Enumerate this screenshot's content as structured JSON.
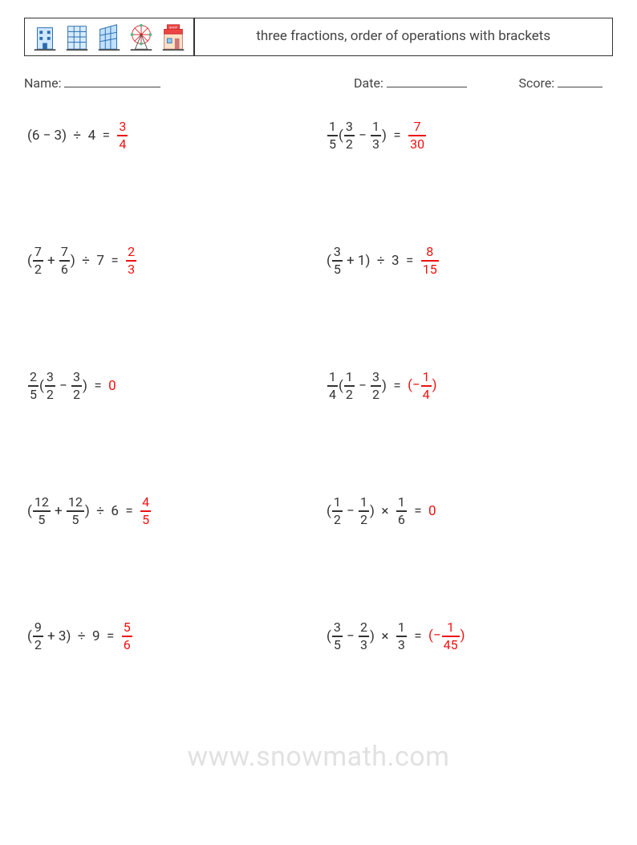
{
  "header": {
    "title": "three fractions, order of operations with brackets",
    "icons": [
      "building-1",
      "building-2",
      "building-3",
      "ferris-wheel",
      "shop"
    ]
  },
  "meta": {
    "name_label": "Name: ",
    "date_label": "Date: ",
    "score_label": "Score: "
  },
  "answer_color": "#ee1111",
  "text_color": "#333333",
  "watermark": "www.snowmath.com",
  "problems": [
    {
      "expr": [
        {
          "t": "txt",
          "v": "(6 − 3)  ÷  4  =  "
        }
      ],
      "ans": [
        {
          "t": "frac",
          "n": "3",
          "d": "4"
        }
      ]
    },
    {
      "expr": [
        {
          "t": "frac",
          "n": "1",
          "d": "5"
        },
        {
          "t": "txt",
          "v": "("
        },
        {
          "t": "frac",
          "n": "3",
          "d": "2"
        },
        {
          "t": "txt",
          "v": " − "
        },
        {
          "t": "frac",
          "n": "1",
          "d": "3"
        },
        {
          "t": "txt",
          "v": ")  =  "
        }
      ],
      "ans": [
        {
          "t": "frac",
          "n": "7",
          "d": "30"
        }
      ]
    },
    {
      "expr": [
        {
          "t": "txt",
          "v": "("
        },
        {
          "t": "frac",
          "n": "7",
          "d": "2"
        },
        {
          "t": "txt",
          "v": " + "
        },
        {
          "t": "frac",
          "n": "7",
          "d": "6"
        },
        {
          "t": "txt",
          "v": ")  ÷  7  =  "
        }
      ],
      "ans": [
        {
          "t": "frac",
          "n": "2",
          "d": "3"
        }
      ]
    },
    {
      "expr": [
        {
          "t": "txt",
          "v": "("
        },
        {
          "t": "frac",
          "n": "3",
          "d": "5"
        },
        {
          "t": "txt",
          "v": " + 1)  ÷  3  =  "
        }
      ],
      "ans": [
        {
          "t": "frac",
          "n": "8",
          "d": "15"
        }
      ]
    },
    {
      "expr": [
        {
          "t": "frac",
          "n": "2",
          "d": "5"
        },
        {
          "t": "txt",
          "v": "("
        },
        {
          "t": "frac",
          "n": "3",
          "d": "2"
        },
        {
          "t": "txt",
          "v": " − "
        },
        {
          "t": "frac",
          "n": "3",
          "d": "2"
        },
        {
          "t": "txt",
          "v": ")  =  "
        }
      ],
      "ans": [
        {
          "t": "txt",
          "v": "0"
        }
      ]
    },
    {
      "expr": [
        {
          "t": "frac",
          "n": "1",
          "d": "4"
        },
        {
          "t": "txt",
          "v": "("
        },
        {
          "t": "frac",
          "n": "1",
          "d": "2"
        },
        {
          "t": "txt",
          "v": " − "
        },
        {
          "t": "frac",
          "n": "3",
          "d": "2"
        },
        {
          "t": "txt",
          "v": ")  =  "
        }
      ],
      "ans": [
        {
          "t": "txt",
          "v": "(−"
        },
        {
          "t": "frac",
          "n": "1",
          "d": "4"
        },
        {
          "t": "txt",
          "v": ")"
        }
      ]
    },
    {
      "expr": [
        {
          "t": "txt",
          "v": "("
        },
        {
          "t": "frac",
          "n": "12",
          "d": "5"
        },
        {
          "t": "txt",
          "v": " + "
        },
        {
          "t": "frac",
          "n": "12",
          "d": "5"
        },
        {
          "t": "txt",
          "v": ")  ÷  6  =  "
        }
      ],
      "ans": [
        {
          "t": "frac",
          "n": "4",
          "d": "5"
        }
      ]
    },
    {
      "expr": [
        {
          "t": "txt",
          "v": "("
        },
        {
          "t": "frac",
          "n": "1",
          "d": "2"
        },
        {
          "t": "txt",
          "v": " − "
        },
        {
          "t": "frac",
          "n": "1",
          "d": "2"
        },
        {
          "t": "txt",
          "v": ")  ×  "
        },
        {
          "t": "frac",
          "n": "1",
          "d": "6"
        },
        {
          "t": "txt",
          "v": "  =  "
        }
      ],
      "ans": [
        {
          "t": "txt",
          "v": "0"
        }
      ]
    },
    {
      "expr": [
        {
          "t": "txt",
          "v": "("
        },
        {
          "t": "frac",
          "n": "9",
          "d": "2"
        },
        {
          "t": "txt",
          "v": " + 3)  ÷  9  =  "
        }
      ],
      "ans": [
        {
          "t": "frac",
          "n": "5",
          "d": "6"
        }
      ]
    },
    {
      "expr": [
        {
          "t": "txt",
          "v": "("
        },
        {
          "t": "frac",
          "n": "3",
          "d": "5"
        },
        {
          "t": "txt",
          "v": " − "
        },
        {
          "t": "frac",
          "n": "2",
          "d": "3"
        },
        {
          "t": "txt",
          "v": ")  ×  "
        },
        {
          "t": "frac",
          "n": "1",
          "d": "3"
        },
        {
          "t": "txt",
          "v": "  =  "
        }
      ],
      "ans": [
        {
          "t": "txt",
          "v": "(−"
        },
        {
          "t": "frac",
          "n": "1",
          "d": "45"
        },
        {
          "t": "txt",
          "v": ")"
        }
      ]
    }
  ],
  "icon_svgs": {
    "building-1": "<svg viewBox='0 0 40 40'><rect x='10' y='8' width='20' height='28' fill='#cfe8ff' stroke='#2b6caf'/><rect x='13' y='12' width='4' height='4' fill='#2b6caf'/><rect x='23' y='12' width='4' height='4' fill='#2b6caf'/><rect x='13' y='20' width='4' height='4' fill='#2b6caf'/><rect x='23' y='20' width='4' height='4' fill='#2b6caf'/><rect x='17' y='28' width='6' height='8' fill='#2b6caf'/><rect x='6' y='36' width='28' height='2' fill='#555'/></svg>",
    "building-2": "<svg viewBox='0 0 40 40'><rect x='8' y='6' width='24' height='30' fill='#d7ecff' stroke='#2b6caf'/><line x1='8' y1='13' x2='32' y2='13' stroke='#2b6caf'/><line x1='8' y1='20' x2='32' y2='20' stroke='#2b6caf'/><line x1='8' y1='27' x2='32' y2='27' stroke='#2b6caf'/><line x1='16' y1='6' x2='16' y2='36' stroke='#2b6caf'/><line x1='24' y1='6' x2='24' y2='36' stroke='#2b6caf'/><rect x='6' y='36' width='28' height='2' fill='#555'/></svg>",
    "building-3": "<svg viewBox='0 0 40 40'><polygon points='8,36 8,10 30,4 30,36' fill='#bfe0ff' stroke='#2b6caf'/><line x1='8' y1='18' x2='30' y2='14' stroke='#2b6caf'/><line x1='8' y1='26' x2='30' y2='22' stroke='#2b6caf'/><line x1='15' y1='8' x2='15' y2='36' stroke='#2b6caf'/><line x1='22' y1='6' x2='22' y2='36' stroke='#2b6caf'/><rect x='6' y='36' width='28' height='2' fill='#555'/></svg>",
    "ferris-wheel": "<svg viewBox='0 0 40 40'><circle cx='20' cy='17' r='12' fill='none' stroke='#d33'/><circle cx='20' cy='17' r='2' fill='#d33'/><line x1='20' y1='5' x2='20' y2='29' stroke='#d33'/><line x1='8' y1='17' x2='32' y2='17' stroke='#d33'/><line x1='11' y1='8' x2='29' y2='26' stroke='#d33'/><line x1='29' y1='8' x2='11' y2='26' stroke='#d33'/><circle cx='20' cy='5' r='2' fill='#5b8'/><circle cx='32' cy='17' r='2' fill='#5b8'/><circle cx='20' cy='29' r='2' fill='#5b8'/><circle cx='8' cy='17' r='2' fill='#5b8'/><polygon points='20,17 12,36 28,36' fill='none' stroke='#555'/><rect x='6' y='36' width='28' height='2' fill='#555'/></svg>",
    "shop": "<svg viewBox='0 0 40 40'><rect x='8' y='16' width='24' height='20' fill='#ffe2c7' stroke='#c77'/><rect x='8' y='10' width='24' height='6' fill='#e44' stroke='#c33'/><rect x='12' y='4' width='16' height='6' fill='#e44' stroke='#c33'/><text x='20' y='9' font-size='4' fill='#fff' text-anchor='middle'>SHOP</text><rect x='12' y='22' width='6' height='6' fill='#8cf' stroke='#47a'/><rect x='22' y='22' width='6' height='14' fill='#c77'/><rect x='6' y='36' width='28' height='2' fill='#555'/></svg>"
  }
}
